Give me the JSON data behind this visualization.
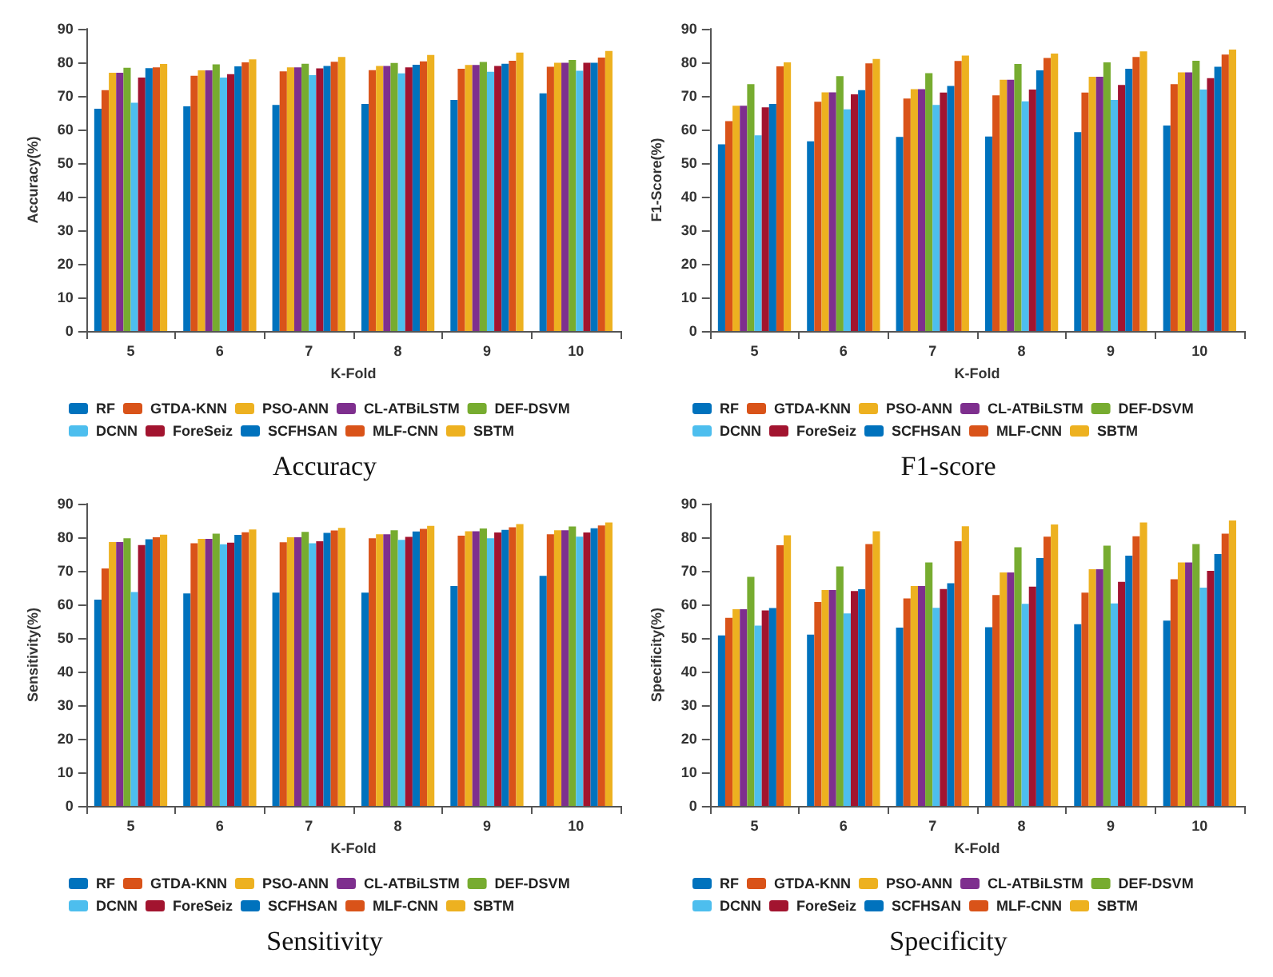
{
  "chart_data": [
    {
      "type": "bar",
      "title": "Accuracy",
      "xlabel": "K-Fold",
      "ylabel": "Accuracy(%)",
      "categories": [
        "5",
        "6",
        "7",
        "8",
        "9",
        "10"
      ],
      "ylim": [
        0,
        90
      ],
      "yticks": [
        0,
        10,
        20,
        30,
        40,
        50,
        60,
        70,
        80,
        90
      ],
      "legend": "bottom",
      "series": [
        {
          "name": "RF",
          "color": "#0072bd",
          "values": [
            66.2,
            66.9,
            67.3,
            67.6,
            68.8,
            70.8
          ]
        },
        {
          "name": "GTDA-KNN",
          "color": "#d95319",
          "values": [
            71.7,
            76,
            77.3,
            77.7,
            78.1,
            78.7
          ]
        },
        {
          "name": "PSO-ANN",
          "color": "#edb120",
          "values": [
            76.9,
            77.6,
            78.5,
            78.9,
            79.2,
            79.9
          ]
        },
        {
          "name": "CL-ATBiLSTM",
          "color": "#7e2f8e",
          "values": [
            76.9,
            77.6,
            78.5,
            78.9,
            79.2,
            79.9
          ]
        },
        {
          "name": "DEF-DSVM",
          "color": "#77ac30",
          "values": [
            78.4,
            79.4,
            79.6,
            79.8,
            80.1,
            80.7
          ]
        },
        {
          "name": "DCNN",
          "color": "#4dbeee",
          "values": [
            68,
            75.5,
            76.2,
            76.7,
            77.2,
            77.5
          ]
        },
        {
          "name": "ForeSeiz",
          "color": "#a2142f",
          "values": [
            75.5,
            76.5,
            78.2,
            78.5,
            78.9,
            79.9
          ]
        },
        {
          "name": "SCFHSAN",
          "color": "#0072bd",
          "values": [
            78.3,
            78.8,
            78.9,
            79.3,
            79.6,
            79.9
          ]
        },
        {
          "name": "MLF-CNN",
          "color": "#d95319",
          "values": [
            78.5,
            80,
            80.2,
            80.3,
            80.5,
            81.4
          ]
        },
        {
          "name": "SBTM",
          "color": "#edb120",
          "values": [
            79.5,
            80.9,
            81.6,
            82.2,
            82.9,
            83.4
          ]
        }
      ]
    },
    {
      "type": "bar",
      "title": "F1-score",
      "xlabel": "K-Fold",
      "ylabel": "F1-Score(%)",
      "categories": [
        "5",
        "6",
        "7",
        "8",
        "9",
        "10"
      ],
      "ylim": [
        0,
        90
      ],
      "yticks": [
        0,
        10,
        20,
        30,
        40,
        50,
        60,
        70,
        80,
        90
      ],
      "legend": "bottom",
      "series": [
        {
          "name": "RF",
          "color": "#0072bd",
          "values": [
            55.6,
            56.5,
            57.8,
            57.9,
            59.2,
            61.2
          ]
        },
        {
          "name": "GTDA-KNN",
          "color": "#d95319",
          "values": [
            62.5,
            68.3,
            69.2,
            70.2,
            71,
            73.5
          ]
        },
        {
          "name": "PSO-ANN",
          "color": "#edb120",
          "values": [
            67.1,
            71.1,
            72,
            74.8,
            75.7,
            77
          ]
        },
        {
          "name": "CL-ATBiLSTM",
          "color": "#7e2f8e",
          "values": [
            67.1,
            71.1,
            72,
            74.8,
            75.7,
            77
          ]
        },
        {
          "name": "DEF-DSVM",
          "color": "#77ac30",
          "values": [
            73.5,
            75.9,
            76.8,
            79.5,
            80,
            80.5
          ]
        },
        {
          "name": "DCNN",
          "color": "#4dbeee",
          "values": [
            58.3,
            66,
            67.3,
            68.4,
            68.8,
            71.9
          ]
        },
        {
          "name": "ForeSeiz",
          "color": "#a2142f",
          "values": [
            66.6,
            70.5,
            71,
            71.9,
            73.3,
            75.3
          ]
        },
        {
          "name": "SCFHSAN",
          "color": "#0072bd",
          "values": [
            67.6,
            71.7,
            73,
            77.6,
            78.1,
            78.7
          ]
        },
        {
          "name": "MLF-CNN",
          "color": "#d95319",
          "values": [
            78.8,
            79.7,
            80.4,
            81.3,
            81.6,
            82.3
          ]
        },
        {
          "name": "SBTM",
          "color": "#edb120",
          "values": [
            80,
            81,
            82,
            82.6,
            83.3,
            83.8
          ]
        }
      ]
    },
    {
      "type": "bar",
      "title": "Sensitivity",
      "xlabel": "K-Fold",
      "ylabel": "Sensitivity(%)",
      "categories": [
        "5",
        "6",
        "7",
        "8",
        "9",
        "10"
      ],
      "ylim": [
        0,
        90
      ],
      "yticks": [
        0,
        10,
        20,
        30,
        40,
        50,
        60,
        70,
        80,
        90
      ],
      "legend": "bottom",
      "series": [
        {
          "name": "RF",
          "color": "#0072bd",
          "values": [
            61.4,
            63.3,
            63.5,
            63.5,
            65.5,
            68.5
          ]
        },
        {
          "name": "GTDA-KNN",
          "color": "#d95319",
          "values": [
            70.7,
            78.2,
            78.5,
            79.7,
            80.5,
            80.9
          ]
        },
        {
          "name": "PSO-ANN",
          "color": "#edb120",
          "values": [
            78.6,
            79.5,
            80,
            80.9,
            81.8,
            82.1
          ]
        },
        {
          "name": "CL-ATBiLSTM",
          "color": "#7e2f8e",
          "values": [
            78.6,
            79.5,
            80,
            80.9,
            81.8,
            82.1
          ]
        },
        {
          "name": "DEF-DSVM",
          "color": "#77ac30",
          "values": [
            79.7,
            81.1,
            81.6,
            82.1,
            82.6,
            83.2
          ]
        },
        {
          "name": "DCNN",
          "color": "#4dbeee",
          "values": [
            63.7,
            77.9,
            78.2,
            79.2,
            79.7,
            80.2
          ]
        },
        {
          "name": "ForeSeiz",
          "color": "#a2142f",
          "values": [
            77.7,
            78.4,
            78.8,
            80.1,
            81.4,
            81.4
          ]
        },
        {
          "name": "SCFHSAN",
          "color": "#0072bd",
          "values": [
            79.4,
            80.7,
            81.3,
            81.7,
            82.2,
            82.7
          ]
        },
        {
          "name": "MLF-CNN",
          "color": "#d95319",
          "values": [
            80,
            81.5,
            82,
            82.5,
            83,
            83.5
          ]
        },
        {
          "name": "SBTM",
          "color": "#edb120",
          "values": [
            80.8,
            82.3,
            82.8,
            83.4,
            83.9,
            84.4
          ]
        }
      ]
    },
    {
      "type": "bar",
      "title": "Specificity",
      "xlabel": "K-Fold",
      "ylabel": "Specificity(%)",
      "categories": [
        "5",
        "6",
        "7",
        "8",
        "9",
        "10"
      ],
      "ylim": [
        0,
        90
      ],
      "yticks": [
        0,
        10,
        20,
        30,
        40,
        50,
        60,
        70,
        80,
        90
      ],
      "legend": "bottom",
      "series": [
        {
          "name": "RF",
          "color": "#0072bd",
          "values": [
            50.8,
            51,
            53.1,
            53.2,
            54.1,
            55.2
          ]
        },
        {
          "name": "GTDA-KNN",
          "color": "#d95319",
          "values": [
            56,
            60.7,
            61.8,
            62.8,
            63.5,
            67.5
          ]
        },
        {
          "name": "PSO-ANN",
          "color": "#edb120",
          "values": [
            58.6,
            64.3,
            65.5,
            69.5,
            70.5,
            72.5
          ]
        },
        {
          "name": "CL-ATBiLSTM",
          "color": "#7e2f8e",
          "values": [
            58.6,
            64.3,
            65.5,
            69.5,
            70.5,
            72.5
          ]
        },
        {
          "name": "DEF-DSVM",
          "color": "#77ac30",
          "values": [
            68.2,
            71.3,
            72.5,
            77,
            77.5,
            78
          ]
        },
        {
          "name": "DCNN",
          "color": "#4dbeee",
          "values": [
            53.7,
            57.3,
            59,
            60.2,
            60.3,
            65
          ]
        },
        {
          "name": "ForeSeiz",
          "color": "#a2142f",
          "values": [
            58.2,
            64,
            64.6,
            65.3,
            66.7,
            70
          ]
        },
        {
          "name": "SCFHSAN",
          "color": "#0072bd",
          "values": [
            58.9,
            64.5,
            66.3,
            73.8,
            74.5,
            75
          ]
        },
        {
          "name": "MLF-CNN",
          "color": "#d95319",
          "values": [
            77.6,
            78,
            78.8,
            80.2,
            80.3,
            81.1
          ]
        },
        {
          "name": "SBTM",
          "color": "#edb120",
          "values": [
            80.6,
            81.8,
            83.3,
            83.8,
            84.4,
            85
          ]
        }
      ]
    }
  ]
}
